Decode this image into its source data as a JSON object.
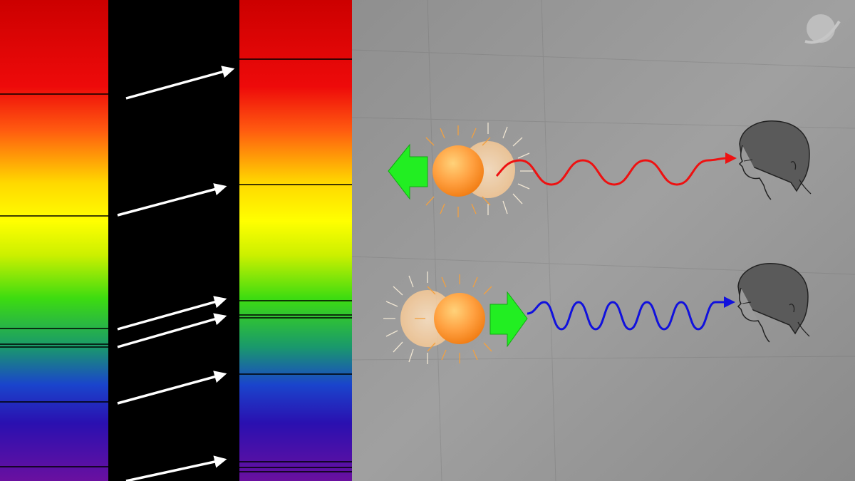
{
  "figure": {
    "left_spectrum_color": "spectrum",
    "right_spectrum_color": "spectrum",
    "shift_direction": "toward-red",
    "arrow_color": "#ffffff",
    "background_panel_color": "#9a9a9a",
    "top_row": {
      "motion": "away",
      "wave_color": "#ee1111",
      "arrow_color": "#22ee22"
    },
    "bottom_row": {
      "motion": "toward",
      "wave_color": "#1111dd",
      "arrow_color": "#22ee22"
    },
    "logo_icon": "planet-logo-icon"
  }
}
